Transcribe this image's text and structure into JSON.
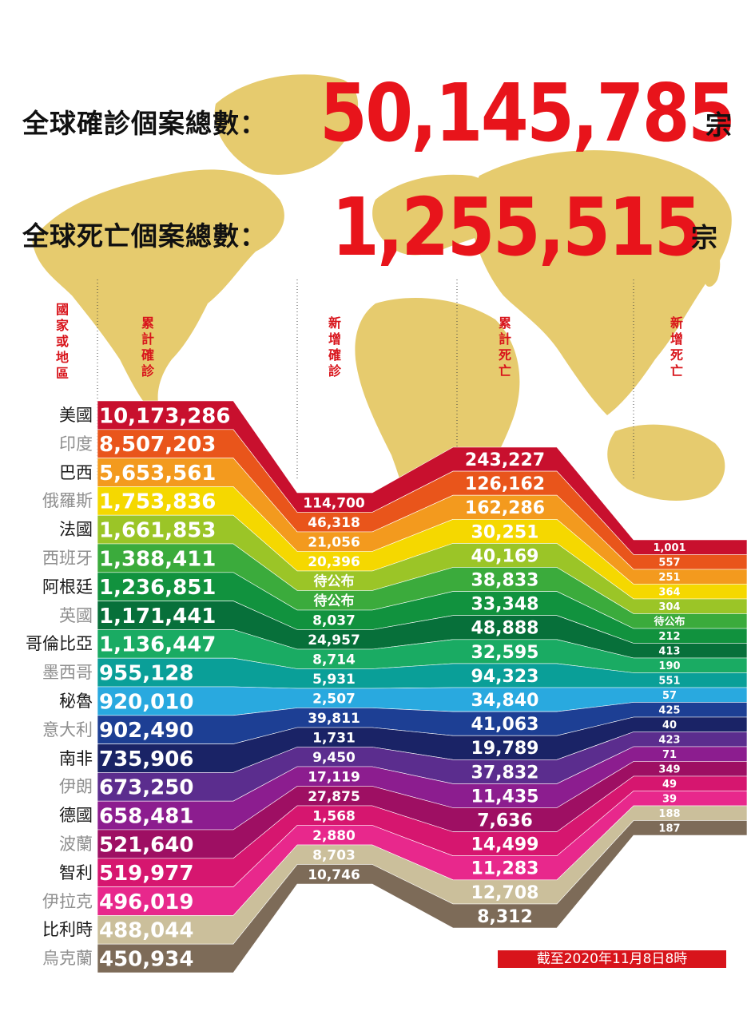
{
  "headline": {
    "cases_label": "全球確診個案總數：",
    "cases_value": "50,145,785",
    "cases_unit": "宗",
    "deaths_label": "全球死亡個案總數：",
    "deaths_value": "1,255,515",
    "deaths_unit": "宗"
  },
  "column_headers": {
    "country": "國家或地區",
    "total_cases": "累計確診",
    "new_cases": "新增確診",
    "total_deaths": "累計死亡",
    "new_deaths": "新增死亡"
  },
  "footnote": "截至2020年11月8日8時",
  "colors": {
    "accent_red": "#e8141b",
    "map": "#e4c766"
  },
  "chart_data": {
    "type": "table",
    "columns": [
      "國家或地區",
      "累計確診",
      "新增確診",
      "累計死亡",
      "新增死亡"
    ],
    "rows": [
      {
        "country": "美國",
        "total_cases": "10,173,286",
        "new_cases": "114,700",
        "total_deaths": "243,227",
        "new_deaths": "1,001",
        "color": "#c8102e"
      },
      {
        "country": "印度",
        "total_cases": "8,507,203",
        "new_cases": "46,318",
        "total_deaths": "126,162",
        "new_deaths": "557",
        "color": "#e9551b"
      },
      {
        "country": "巴西",
        "total_cases": "5,653,561",
        "new_cases": "21,056",
        "total_deaths": "162,286",
        "new_deaths": "251",
        "color": "#f39a1e"
      },
      {
        "country": "俄羅斯",
        "total_cases": "1,753,836",
        "new_cases": "20,396",
        "total_deaths": "30,251",
        "new_deaths": "364",
        "color": "#f5d800"
      },
      {
        "country": "法國",
        "total_cases": "1,661,853",
        "new_cases": "待公布",
        "total_deaths": "40,169",
        "new_deaths": "304",
        "color": "#9bc527"
      },
      {
        "country": "西班牙",
        "total_cases": "1,388,411",
        "new_cases": "待公布",
        "total_deaths": "38,833",
        "new_deaths": "待公布",
        "color": "#3bab3c"
      },
      {
        "country": "阿根廷",
        "total_cases": "1,236,851",
        "new_cases": "8,037",
        "total_deaths": "33,348",
        "new_deaths": "212",
        "color": "#11923e"
      },
      {
        "country": "英國",
        "total_cases": "1,171,441",
        "new_cases": "24,957",
        "total_deaths": "48,888",
        "new_deaths": "413",
        "color": "#07703a"
      },
      {
        "country": "哥倫比亞",
        "total_cases": "1,136,447",
        "new_cases": "8,714",
        "total_deaths": "32,595",
        "new_deaths": "190",
        "color": "#1aab63"
      },
      {
        "country": "墨西哥",
        "total_cases": "955,128",
        "new_cases": "5,931",
        "total_deaths": "94,323",
        "new_deaths": "551",
        "color": "#0a9f98"
      },
      {
        "country": "秘魯",
        "total_cases": "920,010",
        "new_cases": "2,507",
        "total_deaths": "34,840",
        "new_deaths": "57",
        "color": "#29a9df"
      },
      {
        "country": "意大利",
        "total_cases": "902,490",
        "new_cases": "39,811",
        "total_deaths": "41,063",
        "new_deaths": "425",
        "color": "#1d3f94"
      },
      {
        "country": "南非",
        "total_cases": "735,906",
        "new_cases": "1,731",
        "total_deaths": "19,789",
        "new_deaths": "40",
        "color": "#1a2366"
      },
      {
        "country": "伊朗",
        "total_cases": "673,250",
        "new_cases": "9,450",
        "total_deaths": "37,832",
        "new_deaths": "423",
        "color": "#5b2d8e"
      },
      {
        "country": "德國",
        "total_cases": "658,481",
        "new_cases": "17,119",
        "total_deaths": "11,435",
        "new_deaths": "71",
        "color": "#8c1d8f"
      },
      {
        "country": "波蘭",
        "total_cases": "521,640",
        "new_cases": "27,875",
        "total_deaths": "7,636",
        "new_deaths": "349",
        "color": "#9e0f63"
      },
      {
        "country": "智利",
        "total_cases": "519,977",
        "new_cases": "1,568",
        "total_deaths": "14,499",
        "new_deaths": "49",
        "color": "#d6166f"
      },
      {
        "country": "伊拉克",
        "total_cases": "496,019",
        "new_cases": "2,880",
        "total_deaths": "11,283",
        "new_deaths": "39",
        "color": "#e8288c"
      },
      {
        "country": "比利時",
        "total_cases": "488,044",
        "new_cases": "8,703",
        "total_deaths": "12,708",
        "new_deaths": "188",
        "color": "#cbbf9b"
      },
      {
        "country": "烏克蘭",
        "total_cases": "450,934",
        "new_cases": "10,746",
        "total_deaths": "8,312",
        "new_deaths": "187",
        "color": "#7d6b58"
      }
    ]
  }
}
